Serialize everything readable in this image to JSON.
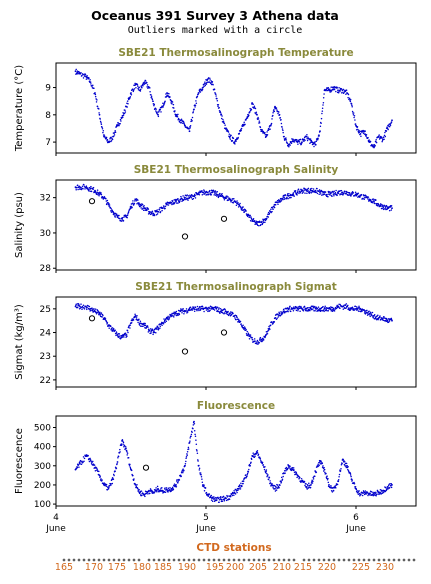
{
  "title": "Oceanus 391 Survey 3 Athena data",
  "subtitle": "Outliers marked with a circle",
  "colors": {
    "series": "#0000cc",
    "panel_title": "#8a8a3c",
    "ctd": "#d2691e",
    "axis": "#000000"
  },
  "x_axis": {
    "range": [
      4.0,
      6.4
    ],
    "ticks": [
      {
        "value": 4,
        "label": "4",
        "sublabel": "June"
      },
      {
        "value": 5,
        "label": "5",
        "sublabel": "June"
      },
      {
        "value": 6,
        "label": "6",
        "sublabel": "June"
      }
    ]
  },
  "ctd": {
    "title": "CTD stations",
    "labels": [
      "165",
      "170",
      "175",
      "180",
      "185",
      "190",
      "195",
      "200",
      "205",
      "210",
      "215",
      "220",
      "225",
      "230"
    ]
  },
  "chart_data": [
    {
      "type": "scatter",
      "title": "SBE21 Thermosalinograph Temperature",
      "ylabel": "Temperature (°C)",
      "ylim": [
        6.6,
        9.9
      ],
      "yticks": [
        7,
        8,
        9
      ],
      "x": [
        4.13,
        4.16,
        4.2,
        4.23,
        4.26,
        4.29,
        4.32,
        4.35,
        4.38,
        4.41,
        4.44,
        4.47,
        4.5,
        4.53,
        4.56,
        4.59,
        4.62,
        4.65,
        4.68,
        4.71,
        4.74,
        4.77,
        4.8,
        4.83,
        4.86,
        4.89,
        4.92,
        4.95,
        4.98,
        5.01,
        5.04,
        5.07,
        5.1,
        5.13,
        5.16,
        5.19,
        5.22,
        5.25,
        5.28,
        5.31,
        5.34,
        5.37,
        5.4,
        5.43,
        5.46,
        5.49,
        5.52,
        5.55,
        5.58,
        5.61,
        5.64,
        5.67,
        5.7,
        5.73,
        5.76,
        5.79,
        5.82,
        5.85,
        5.88,
        5.91,
        5.94,
        5.97,
        6.0,
        6.03,
        6.06,
        6.09,
        6.12,
        6.15,
        6.18,
        6.21,
        6.24
      ],
      "y": [
        9.6,
        9.5,
        9.4,
        9.2,
        8.8,
        8.0,
        7.2,
        7.0,
        7.2,
        7.6,
        7.9,
        8.3,
        8.8,
        9.1,
        8.9,
        9.2,
        9.0,
        8.4,
        8.0,
        8.3,
        8.8,
        8.5,
        8.0,
        7.8,
        7.6,
        7.4,
        8.2,
        8.8,
        9.0,
        9.3,
        9.2,
        8.6,
        8.0,
        7.5,
        7.2,
        7.0,
        7.3,
        7.6,
        8.0,
        8.4,
        8.0,
        7.4,
        7.2,
        7.6,
        8.3,
        8.0,
        7.2,
        6.9,
        7.1,
        7.0,
        7.0,
        7.2,
        7.0,
        6.9,
        7.4,
        8.9,
        8.9,
        9.0,
        8.9,
        8.9,
        8.8,
        8.4,
        7.6,
        7.3,
        7.4,
        7.0,
        6.8,
        7.2,
        7.1,
        7.5,
        7.8
      ],
      "outliers": []
    },
    {
      "type": "scatter",
      "title": "SBE21 Thermosalinograph Salinity",
      "ylabel": "Salinity (psu)",
      "ylim": [
        27.9,
        33.0
      ],
      "yticks": [
        28,
        30,
        32
      ],
      "x": [
        4.13,
        4.16,
        4.2,
        4.23,
        4.26,
        4.29,
        4.32,
        4.35,
        4.38,
        4.41,
        4.44,
        4.47,
        4.5,
        4.53,
        4.56,
        4.59,
        4.62,
        4.65,
        4.68,
        4.71,
        4.74,
        4.77,
        4.8,
        4.83,
        4.86,
        4.89,
        4.92,
        4.95,
        4.98,
        5.01,
        5.04,
        5.07,
        5.1,
        5.13,
        5.16,
        5.19,
        5.22,
        5.25,
        5.28,
        5.31,
        5.34,
        5.37,
        5.4,
        5.43,
        5.46,
        5.49,
        5.52,
        5.55,
        5.58,
        5.61,
        5.64,
        5.67,
        5.7,
        5.73,
        5.76,
        5.79,
        5.82,
        5.85,
        5.88,
        5.91,
        5.94,
        5.97,
        6.0,
        6.03,
        6.06,
        6.09,
        6.12,
        6.15,
        6.18,
        6.21,
        6.24
      ],
      "y": [
        32.6,
        32.6,
        32.6,
        32.5,
        32.4,
        32.2,
        32.0,
        31.6,
        31.2,
        30.9,
        30.8,
        30.9,
        31.5,
        31.9,
        31.6,
        31.4,
        31.2,
        31.1,
        31.2,
        31.4,
        31.6,
        31.7,
        31.8,
        31.9,
        32.0,
        32.0,
        32.1,
        32.2,
        32.3,
        32.3,
        32.3,
        32.2,
        32.1,
        32.0,
        31.9,
        31.8,
        31.6,
        31.3,
        31.0,
        30.7,
        30.5,
        30.6,
        30.8,
        31.2,
        31.6,
        31.8,
        32.0,
        32.1,
        32.2,
        32.3,
        32.4,
        32.4,
        32.4,
        32.4,
        32.3,
        32.2,
        32.2,
        32.2,
        32.3,
        32.3,
        32.3,
        32.2,
        32.2,
        32.1,
        32.0,
        31.9,
        31.8,
        31.6,
        31.5,
        31.4,
        31.4
      ],
      "outliers": [
        {
          "x": 4.24,
          "y": 31.8
        },
        {
          "x": 4.86,
          "y": 29.8
        },
        {
          "x": 5.12,
          "y": 30.8
        }
      ]
    },
    {
      "type": "scatter",
      "title": "SBE21 Thermosalinograph Sigmat",
      "ylabel": "Sigmat (kg/m³)",
      "ylim": [
        21.7,
        25.5
      ],
      "yticks": [
        22,
        23,
        24,
        25
      ],
      "x": [
        4.13,
        4.16,
        4.2,
        4.23,
        4.26,
        4.29,
        4.32,
        4.35,
        4.38,
        4.41,
        4.44,
        4.47,
        4.5,
        4.53,
        4.56,
        4.59,
        4.62,
        4.65,
        4.68,
        4.71,
        4.74,
        4.77,
        4.8,
        4.83,
        4.86,
        4.89,
        4.92,
        4.95,
        4.98,
        5.01,
        5.04,
        5.07,
        5.1,
        5.13,
        5.16,
        5.19,
        5.22,
        5.25,
        5.28,
        5.31,
        5.34,
        5.37,
        5.4,
        5.43,
        5.46,
        5.49,
        5.52,
        5.55,
        5.58,
        5.61,
        5.64,
        5.67,
        5.7,
        5.73,
        5.76,
        5.79,
        5.82,
        5.85,
        5.88,
        5.91,
        5.94,
        5.97,
        6.0,
        6.03,
        6.06,
        6.09,
        6.12,
        6.15,
        6.18,
        6.21,
        6.24
      ],
      "y": [
        25.1,
        25.1,
        25.1,
        25.0,
        24.9,
        24.8,
        24.6,
        24.3,
        24.1,
        23.9,
        23.8,
        23.9,
        24.4,
        24.7,
        24.4,
        24.3,
        24.1,
        24.0,
        24.2,
        24.4,
        24.6,
        24.7,
        24.8,
        24.9,
        24.9,
        25.0,
        25.0,
        25.0,
        25.0,
        25.0,
        25.0,
        25.0,
        24.9,
        24.9,
        24.8,
        24.7,
        24.5,
        24.2,
        23.9,
        23.7,
        23.6,
        23.7,
        23.9,
        24.3,
        24.6,
        24.8,
        24.9,
        25.0,
        25.0,
        25.0,
        25.0,
        25.0,
        25.0,
        25.0,
        25.0,
        25.0,
        25.0,
        25.0,
        25.1,
        25.1,
        25.1,
        25.0,
        25.0,
        25.0,
        24.9,
        24.8,
        24.7,
        24.6,
        24.6,
        24.5,
        24.5
      ],
      "outliers": [
        {
          "x": 4.24,
          "y": 24.6
        },
        {
          "x": 4.86,
          "y": 23.2
        },
        {
          "x": 5.12,
          "y": 24.0
        }
      ]
    },
    {
      "type": "scatter",
      "title": "Fluorescence",
      "ylabel": "Fluorescence",
      "ylim": [
        90,
        560
      ],
      "yticks": [
        100,
        200,
        300,
        400,
        500
      ],
      "x": [
        4.13,
        4.16,
        4.2,
        4.23,
        4.26,
        4.29,
        4.32,
        4.35,
        4.38,
        4.41,
        4.44,
        4.47,
        4.5,
        4.53,
        4.56,
        4.59,
        4.62,
        4.65,
        4.68,
        4.71,
        4.74,
        4.77,
        4.8,
        4.83,
        4.86,
        4.89,
        4.92,
        4.95,
        4.98,
        5.01,
        5.04,
        5.07,
        5.1,
        5.13,
        5.16,
        5.19,
        5.22,
        5.25,
        5.28,
        5.31,
        5.34,
        5.37,
        5.4,
        5.43,
        5.46,
        5.49,
        5.52,
        5.55,
        5.58,
        5.61,
        5.64,
        5.67,
        5.7,
        5.73,
        5.76,
        5.79,
        5.82,
        5.85,
        5.88,
        5.91,
        5.94,
        5.97,
        6.0,
        6.03,
        6.06,
        6.09,
        6.12,
        6.15,
        6.18,
        6.21,
        6.24
      ],
      "y": [
        280,
        310,
        350,
        330,
        290,
        250,
        200,
        180,
        230,
        320,
        430,
        380,
        280,
        200,
        160,
        150,
        170,
        160,
        180,
        170,
        175,
        180,
        200,
        250,
        300,
        420,
        530,
        300,
        200,
        150,
        130,
        120,
        125,
        130,
        140,
        160,
        180,
        220,
        270,
        350,
        370,
        320,
        270,
        210,
        180,
        200,
        260,
        300,
        280,
        250,
        220,
        190,
        200,
        270,
        320,
        280,
        200,
        170,
        220,
        330,
        300,
        230,
        180,
        150,
        160,
        155,
        150,
        160,
        170,
        190,
        200
      ],
      "outliers": [
        {
          "x": 4.6,
          "y": 290
        }
      ]
    }
  ]
}
